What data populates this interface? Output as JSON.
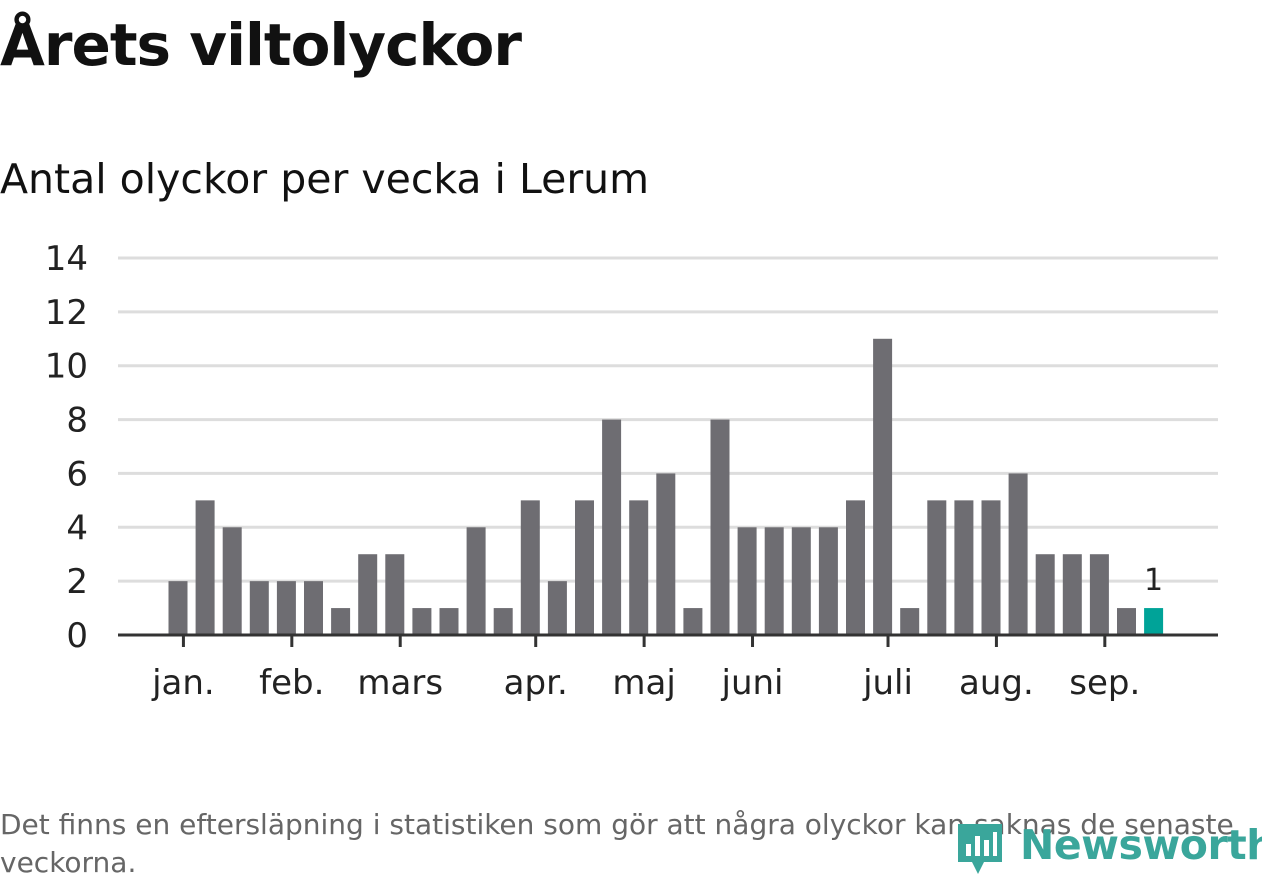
{
  "title": "Årets viltolyckor",
  "subtitle": "Antal olyckor per vecka i Lerum",
  "footnote": "Det finns en eftersläpning i statistiken som gör att några olyckor kan saknas de senaste veckorna.",
  "logo": {
    "text": "Newsworthy",
    "icon": "bar-chart-logo-icon"
  },
  "colors": {
    "bar": "#6e6d72",
    "highlight": "#00a398",
    "grid": "#dddddd",
    "axis": "#333333",
    "text": "#222222",
    "logo": "#3aa69b"
  },
  "chart_data": {
    "type": "bar",
    "title": "Årets viltolyckor",
    "subtitle": "Antal olyckor per vecka i Lerum",
    "xlabel": "",
    "ylabel": "",
    "ylim": [
      0,
      14
    ],
    "yticks": [
      0,
      2,
      4,
      6,
      8,
      10,
      12,
      14
    ],
    "grid": true,
    "values": [
      2,
      5,
      4,
      2,
      2,
      2,
      1,
      3,
      3,
      1,
      1,
      4,
      1,
      5,
      2,
      5,
      8,
      5,
      6,
      1,
      8,
      4,
      4,
      4,
      4,
      5,
      11,
      1,
      5,
      5,
      5,
      6,
      3,
      3,
      3,
      1,
      1
    ],
    "highlight_index": 36,
    "highlight_label": "1",
    "month_labels": [
      {
        "label": "jan.",
        "week": 0.2
      },
      {
        "label": "feb.",
        "week": 4.2
      },
      {
        "label": "mars",
        "week": 8.2
      },
      {
        "label": "apr.",
        "week": 13.2
      },
      {
        "label": "maj",
        "week": 17.2
      },
      {
        "label": "juni",
        "week": 21.2
      },
      {
        "label": "juli",
        "week": 26.2
      },
      {
        "label": "aug.",
        "week": 30.2
      },
      {
        "label": "sep.",
        "week": 34.2
      }
    ]
  }
}
